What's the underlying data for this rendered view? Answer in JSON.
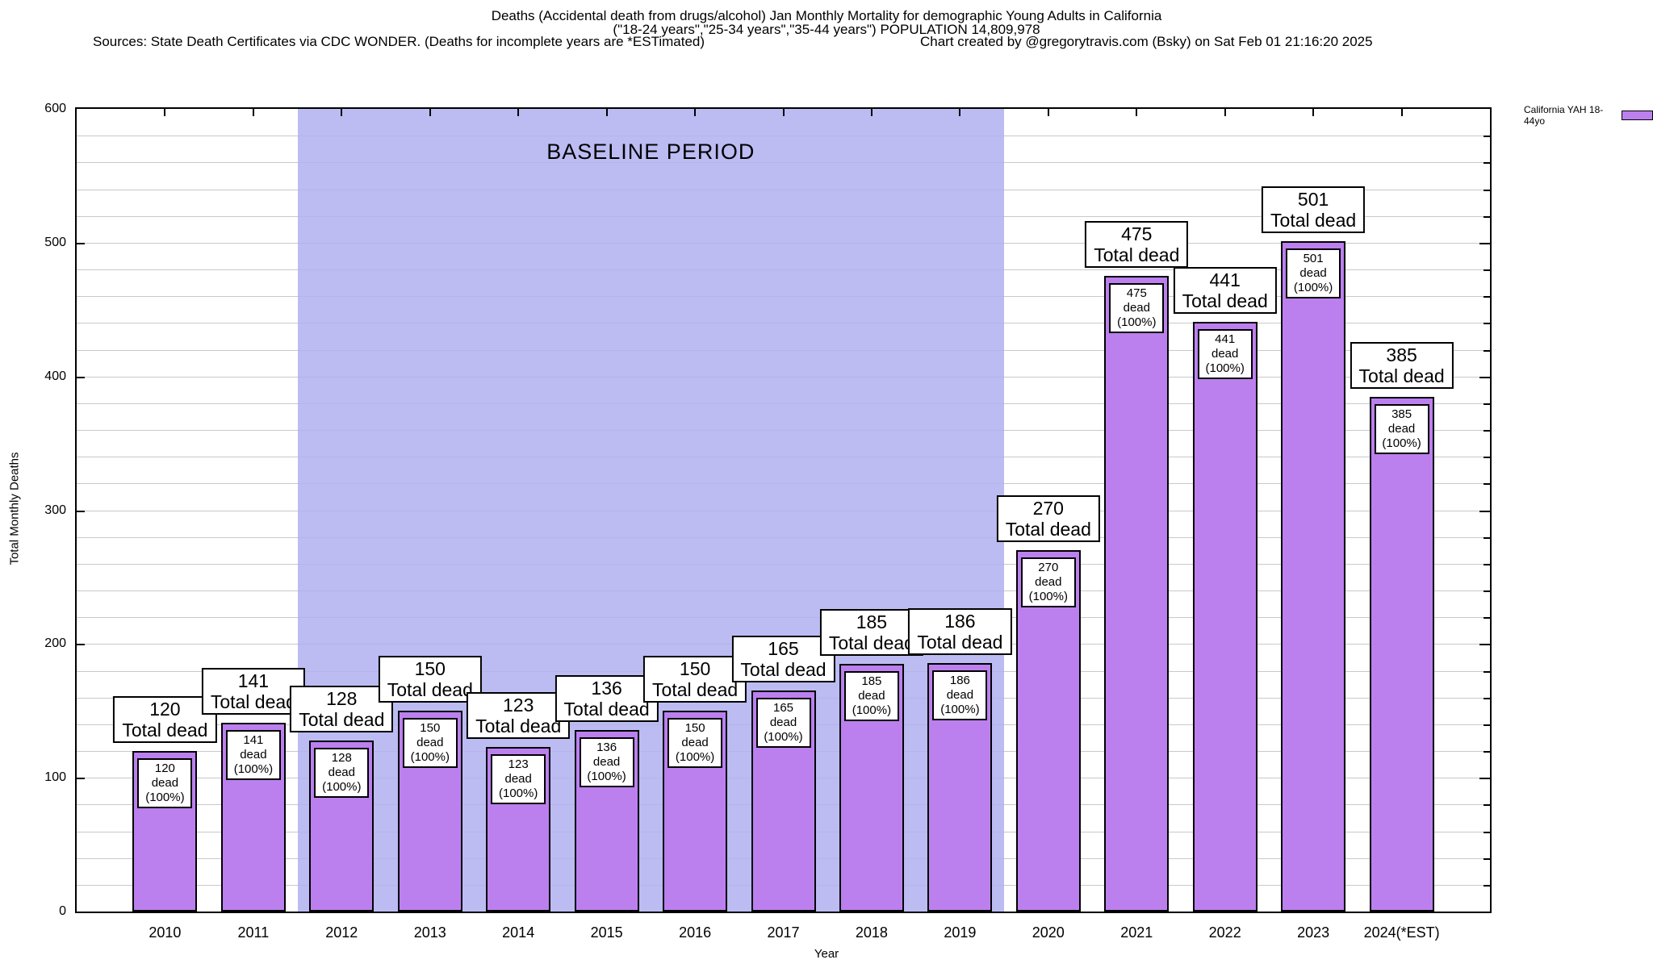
{
  "header": {
    "title_line1": "Deaths (Accidental death from drugs/alcohol) Jan Monthly Mortality for demographic Young Adults in California",
    "title_line2": "(\"18-24 years\",\"25-34 years\",\"35-44 years\") POPULATION 14,809,978",
    "sources": "Sources: State Death Certificates via CDC WONDER. (Deaths for incomplete years are *ESTimated)",
    "credit": "Chart created by @gregorytravis.com (Bsky) on Sat Feb 01 21:16:20 2025"
  },
  "legend": {
    "label": "California YAH 18-44yo",
    "swatch_color": "#bb80ee"
  },
  "chart_data": {
    "type": "bar",
    "title": "Deaths (Accidental death from drugs/alcohol) Jan Monthly Mortality for demographic Young Adults in California",
    "subtitle": "(\"18-24 years\",\"25-34 years\",\"35-44 years\") POPULATION 14,809,978",
    "categories": [
      "2010",
      "2011",
      "2012",
      "2013",
      "2014",
      "2015",
      "2016",
      "2017",
      "2018",
      "2019",
      "2020",
      "2021",
      "2022",
      "2023",
      "2024(*EST)"
    ],
    "series": [
      {
        "name": "California YAH 18-44yo",
        "values": [
          120,
          141,
          128,
          150,
          123,
          136,
          150,
          165,
          185,
          186,
          270,
          475,
          441,
          501,
          385
        ]
      }
    ],
    "bar_top_label_line2": "Total dead",
    "bar_inner_label_line2": "dead (100%)",
    "xlabel": "Year",
    "ylabel": "Total Monthly Deaths",
    "ylim": [
      0,
      600
    ],
    "ytick_step": 100,
    "grid_step": 20,
    "grid": true,
    "legend_position": "top-right",
    "annotations": [
      {
        "text": "BASELINE PERIOD",
        "start_category": "2012",
        "end_category": "2019"
      }
    ],
    "colors": {
      "bar": "#bb80ee",
      "baseline_region": "rgba(176,176,241,0.85)",
      "grid": "#c9c9c9",
      "axis": "#000000"
    }
  }
}
